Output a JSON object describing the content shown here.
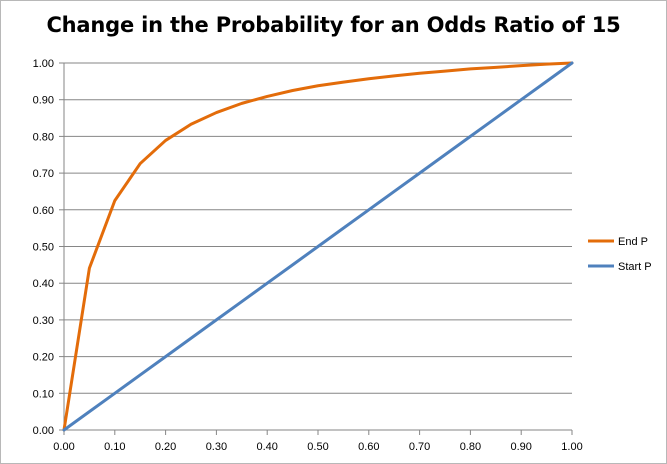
{
  "chart_data": {
    "type": "line",
    "title": "Change in the Probability for an Odds Ratio of 15",
    "xlabel": "",
    "ylabel": "",
    "xlim": [
      0,
      1
    ],
    "ylim": [
      0,
      1
    ],
    "x_ticks": [
      "0.00",
      "0.10",
      "0.20",
      "0.30",
      "0.40",
      "0.50",
      "0.60",
      "0.70",
      "0.80",
      "0.90",
      "1.00"
    ],
    "y_ticks": [
      "0.00",
      "0.10",
      "0.20",
      "0.30",
      "0.40",
      "0.50",
      "0.60",
      "0.70",
      "0.80",
      "0.90",
      "1.00"
    ],
    "grid": "horizontal",
    "legend_position": "right",
    "x": [
      0,
      0.05,
      0.1,
      0.15,
      0.2,
      0.25,
      0.3,
      0.35,
      0.4,
      0.45,
      0.5,
      0.55,
      0.6,
      0.65,
      0.7,
      0.75,
      0.8,
      0.85,
      0.9,
      0.95,
      1.0
    ],
    "series": [
      {
        "name": "End P",
        "color": "#E36C0A",
        "values": [
          0,
          0.441,
          0.625,
          0.726,
          0.789,
          0.833,
          0.865,
          0.89,
          0.909,
          0.925,
          0.938,
          0.948,
          0.957,
          0.965,
          0.972,
          0.978,
          0.984,
          0.988,
          0.993,
          0.997,
          1.0
        ]
      },
      {
        "name": "Start P",
        "color": "#4F81BD",
        "values": [
          0,
          0.05,
          0.1,
          0.15,
          0.2,
          0.25,
          0.3,
          0.35,
          0.4,
          0.45,
          0.5,
          0.55,
          0.6,
          0.65,
          0.7,
          0.75,
          0.8,
          0.85,
          0.9,
          0.95,
          1.0
        ]
      }
    ]
  }
}
